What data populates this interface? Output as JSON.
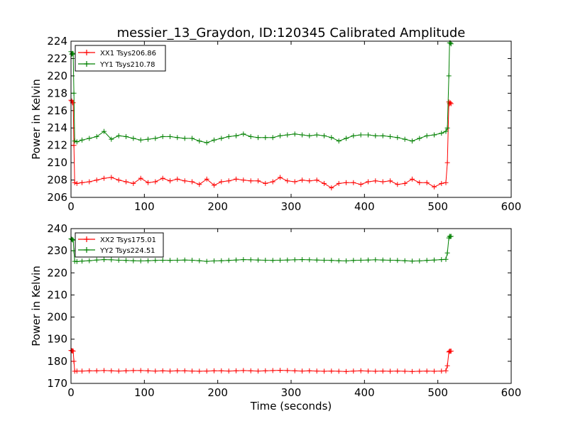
{
  "chart_data": [
    {
      "type": "line",
      "title": "messier_13_Graydon, ID:120345 Calibrated Amplitude",
      "xlabel": "",
      "ylabel": "Power in Kelvin",
      "xlim": [
        0,
        600
      ],
      "ylim": [
        206,
        224
      ],
      "xticks": [
        0,
        100,
        200,
        300,
        400,
        500,
        600
      ],
      "yticks": [
        206,
        208,
        210,
        212,
        214,
        216,
        218,
        220,
        222,
        224
      ],
      "legend_position": "top-left",
      "grid": false,
      "series": [
        {
          "name": "XX1 Tsys206.86",
          "color": "#ff0000",
          "marker": "+",
          "x": [
            0,
            1,
            2,
            3,
            4,
            5,
            8,
            15,
            25,
            35,
            45,
            55,
            65,
            75,
            85,
            95,
            105,
            115,
            125,
            135,
            145,
            155,
            165,
            175,
            185,
            195,
            205,
            215,
            225,
            235,
            245,
            255,
            265,
            275,
            285,
            295,
            305,
            315,
            325,
            335,
            345,
            355,
            365,
            375,
            385,
            395,
            405,
            415,
            425,
            435,
            445,
            455,
            465,
            475,
            485,
            495,
            505,
            511,
            513,
            515,
            516,
            517,
            518
          ],
          "y": [
            217.2,
            217.1,
            216.9,
            216.9,
            212,
            207.7,
            207.6,
            207.7,
            207.8,
            208,
            208.2,
            208.3,
            208,
            207.8,
            207.6,
            208.2,
            207.7,
            207.8,
            208.2,
            207.9,
            208.1,
            207.9,
            207.8,
            207.5,
            208.1,
            207.4,
            207.8,
            207.9,
            208.1,
            208,
            207.9,
            207.9,
            207.6,
            207.8,
            208.3,
            207.9,
            207.8,
            208,
            207.9,
            208,
            207.6,
            207.1,
            207.6,
            207.7,
            207.7,
            207.5,
            207.8,
            207.9,
            207.8,
            207.9,
            207.5,
            207.6,
            208.1,
            207.7,
            207.7,
            207.2,
            207.6,
            207.7,
            210,
            217,
            216.8,
            216.9,
            216.8
          ]
        },
        {
          "name": "YY1 Tsys210.78",
          "color": "#008000",
          "marker": "+",
          "x": [
            0,
            1,
            2,
            3,
            4,
            5,
            8,
            15,
            25,
            35,
            45,
            55,
            65,
            75,
            85,
            95,
            105,
            115,
            125,
            135,
            145,
            155,
            165,
            175,
            185,
            195,
            205,
            215,
            225,
            235,
            245,
            255,
            265,
            275,
            285,
            295,
            305,
            315,
            325,
            335,
            345,
            355,
            365,
            375,
            385,
            395,
            405,
            415,
            425,
            435,
            445,
            455,
            465,
            475,
            485,
            495,
            505,
            511,
            513,
            515,
            516,
            517,
            518
          ],
          "y": [
            222.8,
            222.5,
            222.6,
            222.5,
            218,
            212.5,
            212.4,
            212.6,
            212.8,
            213,
            213.6,
            212.7,
            213.1,
            213,
            212.8,
            212.6,
            212.7,
            212.8,
            213,
            213,
            212.9,
            212.8,
            212.8,
            212.5,
            212.3,
            212.6,
            212.8,
            213,
            213.1,
            213.3,
            213,
            212.9,
            212.9,
            212.9,
            213.1,
            213.2,
            213.3,
            213.2,
            213.1,
            213.2,
            213.1,
            212.9,
            212.5,
            212.8,
            213.1,
            213.2,
            213.2,
            213.1,
            213.1,
            213,
            212.9,
            212.7,
            212.5,
            212.8,
            213.1,
            213.2,
            213.4,
            213.6,
            214,
            220,
            223.8,
            223.8,
            223.7
          ]
        }
      ]
    },
    {
      "type": "line",
      "title": "",
      "xlabel": "Time (seconds)",
      "ylabel": "Power in Kelvin",
      "xlim": [
        0,
        600
      ],
      "ylim": [
        170,
        240
      ],
      "xticks": [
        0,
        100,
        200,
        300,
        400,
        500,
        600
      ],
      "yticks": [
        170,
        180,
        190,
        200,
        210,
        220,
        230,
        240
      ],
      "legend_position": "top-left",
      "grid": false,
      "series": [
        {
          "name": "XX2 Tsys175.01",
          "color": "#ff0000",
          "marker": "+",
          "x": [
            0,
            1,
            2,
            3,
            4,
            5,
            8,
            15,
            25,
            35,
            45,
            55,
            65,
            75,
            85,
            95,
            105,
            115,
            125,
            135,
            145,
            155,
            165,
            175,
            185,
            195,
            205,
            215,
            225,
            235,
            245,
            255,
            265,
            275,
            285,
            295,
            305,
            315,
            325,
            335,
            345,
            355,
            365,
            375,
            385,
            395,
            405,
            415,
            425,
            435,
            445,
            455,
            465,
            475,
            485,
            495,
            505,
            511,
            513,
            515,
            516,
            517,
            518
          ],
          "y": [
            184.9,
            184.8,
            184.7,
            184.6,
            180,
            175.5,
            175.6,
            175.6,
            175.7,
            175.7,
            175.8,
            175.7,
            175.6,
            175.7,
            175.8,
            175.8,
            175.7,
            175.6,
            175.7,
            175.6,
            175.7,
            175.7,
            175.6,
            175.5,
            175.6,
            175.7,
            175.7,
            175.6,
            175.7,
            175.8,
            175.7,
            175.6,
            175.7,
            175.8,
            175.9,
            175.8,
            175.7,
            175.6,
            175.7,
            175.6,
            175.5,
            175.6,
            175.5,
            175.4,
            175.6,
            175.7,
            175.6,
            175.5,
            175.6,
            175.5,
            175.6,
            175.5,
            175.4,
            175.5,
            175.6,
            175.5,
            175.6,
            175.7,
            178,
            184.2,
            184.6,
            184.5,
            184.6
          ]
        },
        {
          "name": "YY2 Tsys224.51",
          "color": "#008000",
          "marker": "+",
          "x": [
            0,
            1,
            2,
            3,
            4,
            5,
            8,
            15,
            25,
            35,
            45,
            55,
            65,
            75,
            85,
            95,
            105,
            115,
            125,
            135,
            145,
            155,
            165,
            175,
            185,
            195,
            205,
            215,
            225,
            235,
            245,
            255,
            265,
            275,
            285,
            295,
            305,
            315,
            325,
            335,
            345,
            355,
            365,
            375,
            385,
            395,
            405,
            415,
            425,
            435,
            445,
            455,
            465,
            475,
            485,
            495,
            505,
            511,
            513,
            515,
            516,
            517,
            518
          ],
          "y": [
            235.4,
            235.2,
            235,
            234.8,
            230,
            225.2,
            225.1,
            225.3,
            225.5,
            225.8,
            226,
            225.9,
            225.7,
            225.6,
            225.5,
            225.4,
            225.5,
            225.6,
            225.7,
            225.6,
            225.7,
            225.8,
            225.7,
            225.5,
            225.2,
            225.4,
            225.5,
            225.6,
            225.8,
            226,
            225.9,
            225.8,
            225.7,
            225.6,
            225.7,
            225.8,
            225.9,
            226,
            225.9,
            225.8,
            225.7,
            225.6,
            225.5,
            225.4,
            225.6,
            225.7,
            225.8,
            225.9,
            225.8,
            225.7,
            225.6,
            225.5,
            225.3,
            225.4,
            225.6,
            225.8,
            226,
            226.1,
            229,
            235.8,
            236.5,
            236.4,
            236.5
          ]
        }
      ]
    }
  ]
}
